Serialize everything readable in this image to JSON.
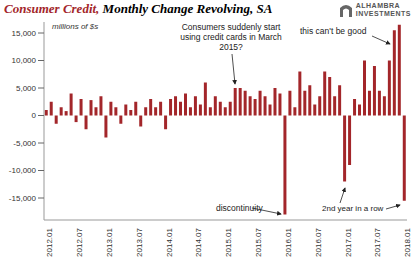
{
  "chart_data": {
    "type": "bar",
    "title": "Consumer Credit,",
    "subtitle": "Monthly Change Revolving, SA",
    "logo": [
      "ALHAMBRA",
      "INVESTMENTS"
    ],
    "ylabel": "millions of $s",
    "annotations": [
      "Consumers suddenly start using credit cards in March 2015?",
      "this can't be good",
      "discontinuity",
      "2nd year in a row"
    ],
    "categories": [
      "2012.01",
      null,
      null,
      null,
      null,
      null,
      "2012.07",
      null,
      null,
      null,
      null,
      null,
      "2013.01",
      null,
      null,
      null,
      null,
      null,
      "2013.07",
      null,
      null,
      null,
      null,
      null,
      "2014.01",
      null,
      null,
      null,
      null,
      null,
      "2014.07",
      null,
      null,
      null,
      null,
      null,
      "2015.01",
      null,
      null,
      null,
      null,
      null,
      "2015.07",
      null,
      null,
      null,
      null,
      null,
      "2016.01",
      null,
      null,
      null,
      null,
      null,
      "2016.07",
      null,
      null,
      null,
      null,
      null,
      "2017.01",
      null,
      null,
      null,
      null,
      null,
      "2017.07",
      null,
      null,
      null,
      null,
      null,
      "2018.01"
    ],
    "values": [
      1000,
      2500,
      -1500,
      1500,
      800,
      4000,
      -1200,
      3000,
      -2500,
      2800,
      1500,
      3500,
      -4000,
      2500,
      1500,
      -1500,
      2000,
      1000,
      2500,
      -2000,
      1500,
      3000,
      1500,
      2500,
      -2500,
      3000,
      3500,
      2500,
      4000,
      1500,
      3500,
      2000,
      6000,
      1500,
      3500,
      2500,
      1500,
      2500,
      5000,
      5000,
      4500,
      3500,
      3000,
      4500,
      3500,
      2000,
      5000,
      4000,
      -18000,
      4500,
      1500,
      8000,
      4500,
      5500,
      2000,
      3500,
      8000,
      7000,
      3500,
      5500,
      -12000,
      -9000,
      3000,
      2000,
      10000,
      4500,
      9000,
      4500,
      3500,
      10000,
      15500,
      16500,
      -15500
    ],
    "color": "#a3262a",
    "ylim": [
      -19000,
      17000
    ],
    "yticks": [
      {
        "value": -15000,
        "label": "-15,000"
      },
      {
        "value": -10000,
        "label": "-10,000"
      },
      {
        "value": -5000,
        "label": "-5,000"
      },
      0,
      {
        "value": 5000,
        "label": "5,000"
      },
      {
        "value": 10000,
        "label": "10,000"
      },
      {
        "value": 15000,
        "label": "15,000"
      }
    ],
    "grid": false
  }
}
